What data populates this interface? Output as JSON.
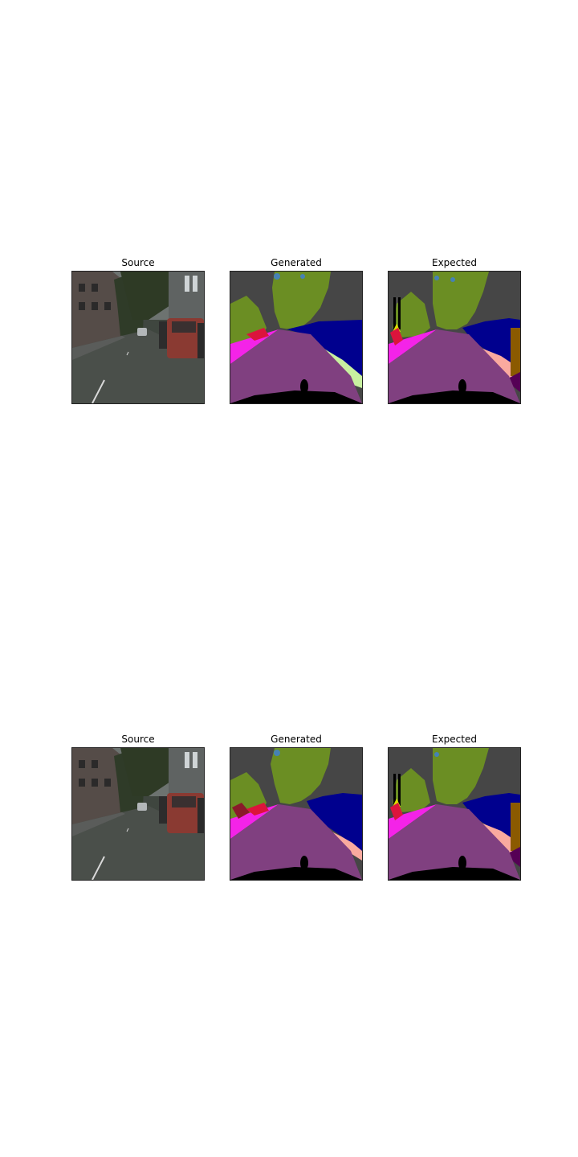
{
  "rows": [
    {
      "panels": [
        {
          "title": "Source"
        },
        {
          "title": "Generated"
        },
        {
          "title": "Expected"
        }
      ]
    },
    {
      "panels": [
        {
          "title": "Source"
        },
        {
          "title": "Generated"
        },
        {
          "title": "Expected"
        }
      ]
    }
  ],
  "colors": {
    "road": "#804080",
    "sidewalk": "#f423e8",
    "building": "#464646",
    "vegetation": "#6b8e23",
    "car": "#00008e",
    "sky": "#4682b4",
    "ego_vehicle": "#000000",
    "pole": "#999999",
    "terrain": "#faaa9f",
    "person": "#dc143c",
    "traffic_sign": "#dcdc00",
    "wall_brown": "#8b5a00",
    "dark_purple": "#550055"
  }
}
